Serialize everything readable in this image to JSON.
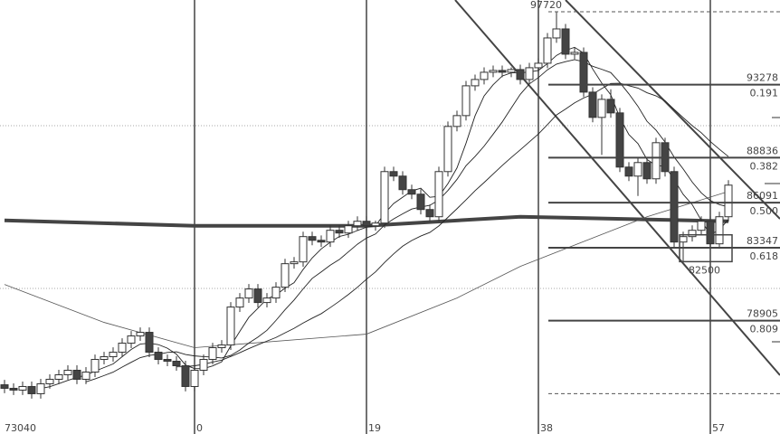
{
  "chart_data": {
    "type": "candlestick",
    "title": "",
    "x_tick_labels": [
      {
        "index": -21,
        "label": "73040"
      },
      {
        "index": 0,
        "label": "0"
      },
      {
        "index": 19,
        "label": "19"
      },
      {
        "index": 38,
        "label": "38"
      },
      {
        "index": 57,
        "label": "57"
      }
    ],
    "x_range": [
      -21,
      63
    ],
    "y_range": [
      71370,
      97960
    ],
    "first_index": -21,
    "candles_ohlc": [
      [
        75000,
        75300,
        74485,
        74785
      ],
      [
        74785,
        75085,
        74375,
        74675
      ],
      [
        74675,
        75195,
        74375,
        74895
      ],
      [
        74895,
        75195,
        74155,
        74455
      ],
      [
        74455,
        75360,
        74155,
        75060
      ],
      [
        75060,
        75635,
        74760,
        75335
      ],
      [
        75335,
        75910,
        75035,
        75610
      ],
      [
        75610,
        76185,
        75310,
        75885
      ],
      [
        75885,
        76185,
        75035,
        75335
      ],
      [
        75335,
        76075,
        75035,
        75775
      ],
      [
        75775,
        76845,
        75475,
        76545
      ],
      [
        76545,
        77010,
        76245,
        76710
      ],
      [
        76710,
        77285,
        76410,
        76985
      ],
      [
        76985,
        77835,
        76685,
        77535
      ],
      [
        77535,
        78275,
        77235,
        77975
      ],
      [
        77975,
        78495,
        77675,
        78195
      ],
      [
        78195,
        78495,
        76685,
        76985
      ],
      [
        76985,
        77285,
        76245,
        76545
      ],
      [
        76545,
        76845,
        76135,
        76435
      ],
      [
        76435,
        76735,
        75860,
        76160
      ],
      [
        76160,
        76460,
        74595,
        74895
      ],
      [
        74895,
        76185,
        74595,
        75885
      ],
      [
        75885,
        76845,
        75585,
        76545
      ],
      [
        76545,
        77560,
        76245,
        77260
      ],
      [
        77260,
        77725,
        76960,
        77425
      ],
      [
        77425,
        80035,
        77125,
        79735
      ],
      [
        79735,
        80585,
        79435,
        80285
      ],
      [
        80285,
        81135,
        79985,
        80835
      ],
      [
        80835,
        81135,
        79710,
        80010
      ],
      [
        80010,
        80585,
        79710,
        80285
      ],
      [
        80285,
        81245,
        79985,
        80945
      ],
      [
        80945,
        82675,
        80645,
        82375
      ],
      [
        82375,
        82785,
        82075,
        82485
      ],
      [
        82485,
        84325,
        82185,
        84025
      ],
      [
        84025,
        84325,
        83500,
        83800
      ],
      [
        83800,
        84100,
        83395,
        83695
      ],
      [
        83695,
        84710,
        83395,
        84410
      ],
      [
        84410,
        84710,
        83945,
        84245
      ],
      [
        84245,
        84985,
        83945,
        84685
      ],
      [
        84685,
        85260,
        84385,
        84960
      ],
      [
        84960,
        85260,
        84385,
        84685
      ],
      [
        84685,
        85000,
        84385,
        84850
      ],
      [
        84850,
        88285,
        84550,
        87985
      ],
      [
        87985,
        88285,
        87410,
        87710
      ],
      [
        87710,
        88010,
        86585,
        86885
      ],
      [
        86885,
        87185,
        86310,
        86610
      ],
      [
        86610,
        86910,
        85375,
        85675
      ],
      [
        85675,
        85975,
        84935,
        85235
      ],
      [
        85235,
        88285,
        84935,
        87985
      ],
      [
        87985,
        91035,
        87685,
        90735
      ],
      [
        90735,
        91695,
        90435,
        91395
      ],
      [
        91395,
        93510,
        91095,
        93210
      ],
      [
        93210,
        93895,
        92910,
        93595
      ],
      [
        93595,
        94335,
        93295,
        94035
      ],
      [
        94035,
        94445,
        93735,
        94145
      ],
      [
        94145,
        94445,
        93735,
        94035
      ],
      [
        94035,
        94335,
        93735,
        94200
      ],
      [
        94200,
        94500,
        93295,
        93595
      ],
      [
        93595,
        94610,
        93295,
        94310
      ],
      [
        94310,
        94885,
        94010,
        94585
      ],
      [
        94585,
        96425,
        94285,
        96125
      ],
      [
        96125,
        97720,
        95825,
        96675
      ],
      [
        96675,
        96975,
        94835,
        95135
      ],
      [
        95135,
        95545,
        94835,
        95245
      ],
      [
        95245,
        95545,
        92525,
        92825
      ],
      [
        92825,
        93125,
        90985,
        91285
      ],
      [
        91285,
        92685,
        89000,
        92385
      ],
      [
        92385,
        93000,
        91260,
        91560
      ],
      [
        91560,
        91860,
        87960,
        88260
      ],
      [
        88260,
        88560,
        87410,
        87710
      ],
      [
        87710,
        88835,
        86500,
        88535
      ],
      [
        88535,
        88835,
        87245,
        87545
      ],
      [
        87545,
        90045,
        87245,
        89745
      ],
      [
        89745,
        90045,
        87685,
        87985
      ],
      [
        87985,
        88285,
        83395,
        83695
      ],
      [
        83695,
        84325,
        82500,
        84025
      ],
      [
        84025,
        84710,
        83725,
        84410
      ],
      [
        84410,
        85260,
        84110,
        84960
      ],
      [
        84960,
        85260,
        83285,
        83585
      ],
      [
        83585,
        85535,
        83285,
        85235
      ],
      [
        85235,
        87460,
        84935,
        87160
      ]
    ],
    "moving_average_thick": [
      [
        -21,
        85015
      ],
      [
        0,
        84685
      ],
      [
        19,
        84685
      ],
      [
        36,
        85235
      ],
      [
        59,
        84960
      ]
    ],
    "moving_average_long": [
      [
        -21,
        81110
      ],
      [
        -10,
        78800
      ],
      [
        0,
        77260
      ],
      [
        19,
        78085
      ],
      [
        29,
        80285
      ],
      [
        36,
        82210
      ],
      [
        50,
        85235
      ],
      [
        59,
        86775
      ]
    ],
    "high_label": "97720",
    "swing_high": 97720,
    "swing_low": 74462,
    "fibonacci_levels": [
      {
        "price": "93278",
        "ratio": "0.191",
        "value": 93278
      },
      {
        "price": "88836",
        "ratio": "0.382",
        "value": 88836
      },
      {
        "price": "86091",
        "ratio": "0.500",
        "value": 86091
      },
      {
        "price": "83347",
        "ratio": "0.618",
        "value": 83347
      },
      {
        "price": "78905",
        "ratio": "0.809",
        "value": 78905
      }
    ],
    "box_label": "82500",
    "box_range": {
      "from_index": 54,
      "to_index": 59,
      "low": 82500,
      "high": 84960
    },
    "grid_lines": [
      90780,
      80870
    ],
    "colors": {
      "bear": "#444444",
      "bull": "#ffffff",
      "line": "#333333",
      "grid": "#999999"
    }
  }
}
